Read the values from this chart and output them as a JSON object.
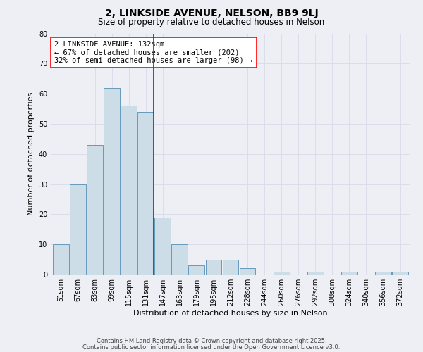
{
  "title": "2, LINKSIDE AVENUE, NELSON, BB9 9LJ",
  "subtitle": "Size of property relative to detached houses in Nelson",
  "xlabel": "Distribution of detached houses by size in Nelson",
  "ylabel": "Number of detached properties",
  "bar_labels": [
    "51sqm",
    "67sqm",
    "83sqm",
    "99sqm",
    "115sqm",
    "131sqm",
    "147sqm",
    "163sqm",
    "179sqm",
    "195sqm",
    "212sqm",
    "228sqm",
    "244sqm",
    "260sqm",
    "276sqm",
    "292sqm",
    "308sqm",
    "324sqm",
    "340sqm",
    "356sqm",
    "372sqm"
  ],
  "bar_values": [
    10,
    30,
    43,
    62,
    56,
    54,
    19,
    10,
    3,
    5,
    5,
    2,
    0,
    1,
    0,
    1,
    0,
    1,
    0,
    1,
    1
  ],
  "bar_color": "#ccdde8",
  "bar_edge_color": "#6699bb",
  "annotation_line_color": "#cc0000",
  "annotation_box_text": "2 LINKSIDE AVENUE: 132sqm\n← 67% of detached houses are smaller (202)\n32% of semi-detached houses are larger (98) →",
  "ylim": [
    0,
    80
  ],
  "yticks": [
    0,
    10,
    20,
    30,
    40,
    50,
    60,
    70,
    80
  ],
  "grid_color": "#d8dce8",
  "background_color": "#eeeef5",
  "footer_line1": "Contains HM Land Registry data © Crown copyright and database right 2025.",
  "footer_line2": "Contains public sector information licensed under the Open Government Licence v3.0.",
  "title_fontsize": 10,
  "subtitle_fontsize": 8.5,
  "annotation_fontsize": 7.5,
  "axis_label_fontsize": 8,
  "tick_fontsize": 7,
  "footer_fontsize": 6
}
